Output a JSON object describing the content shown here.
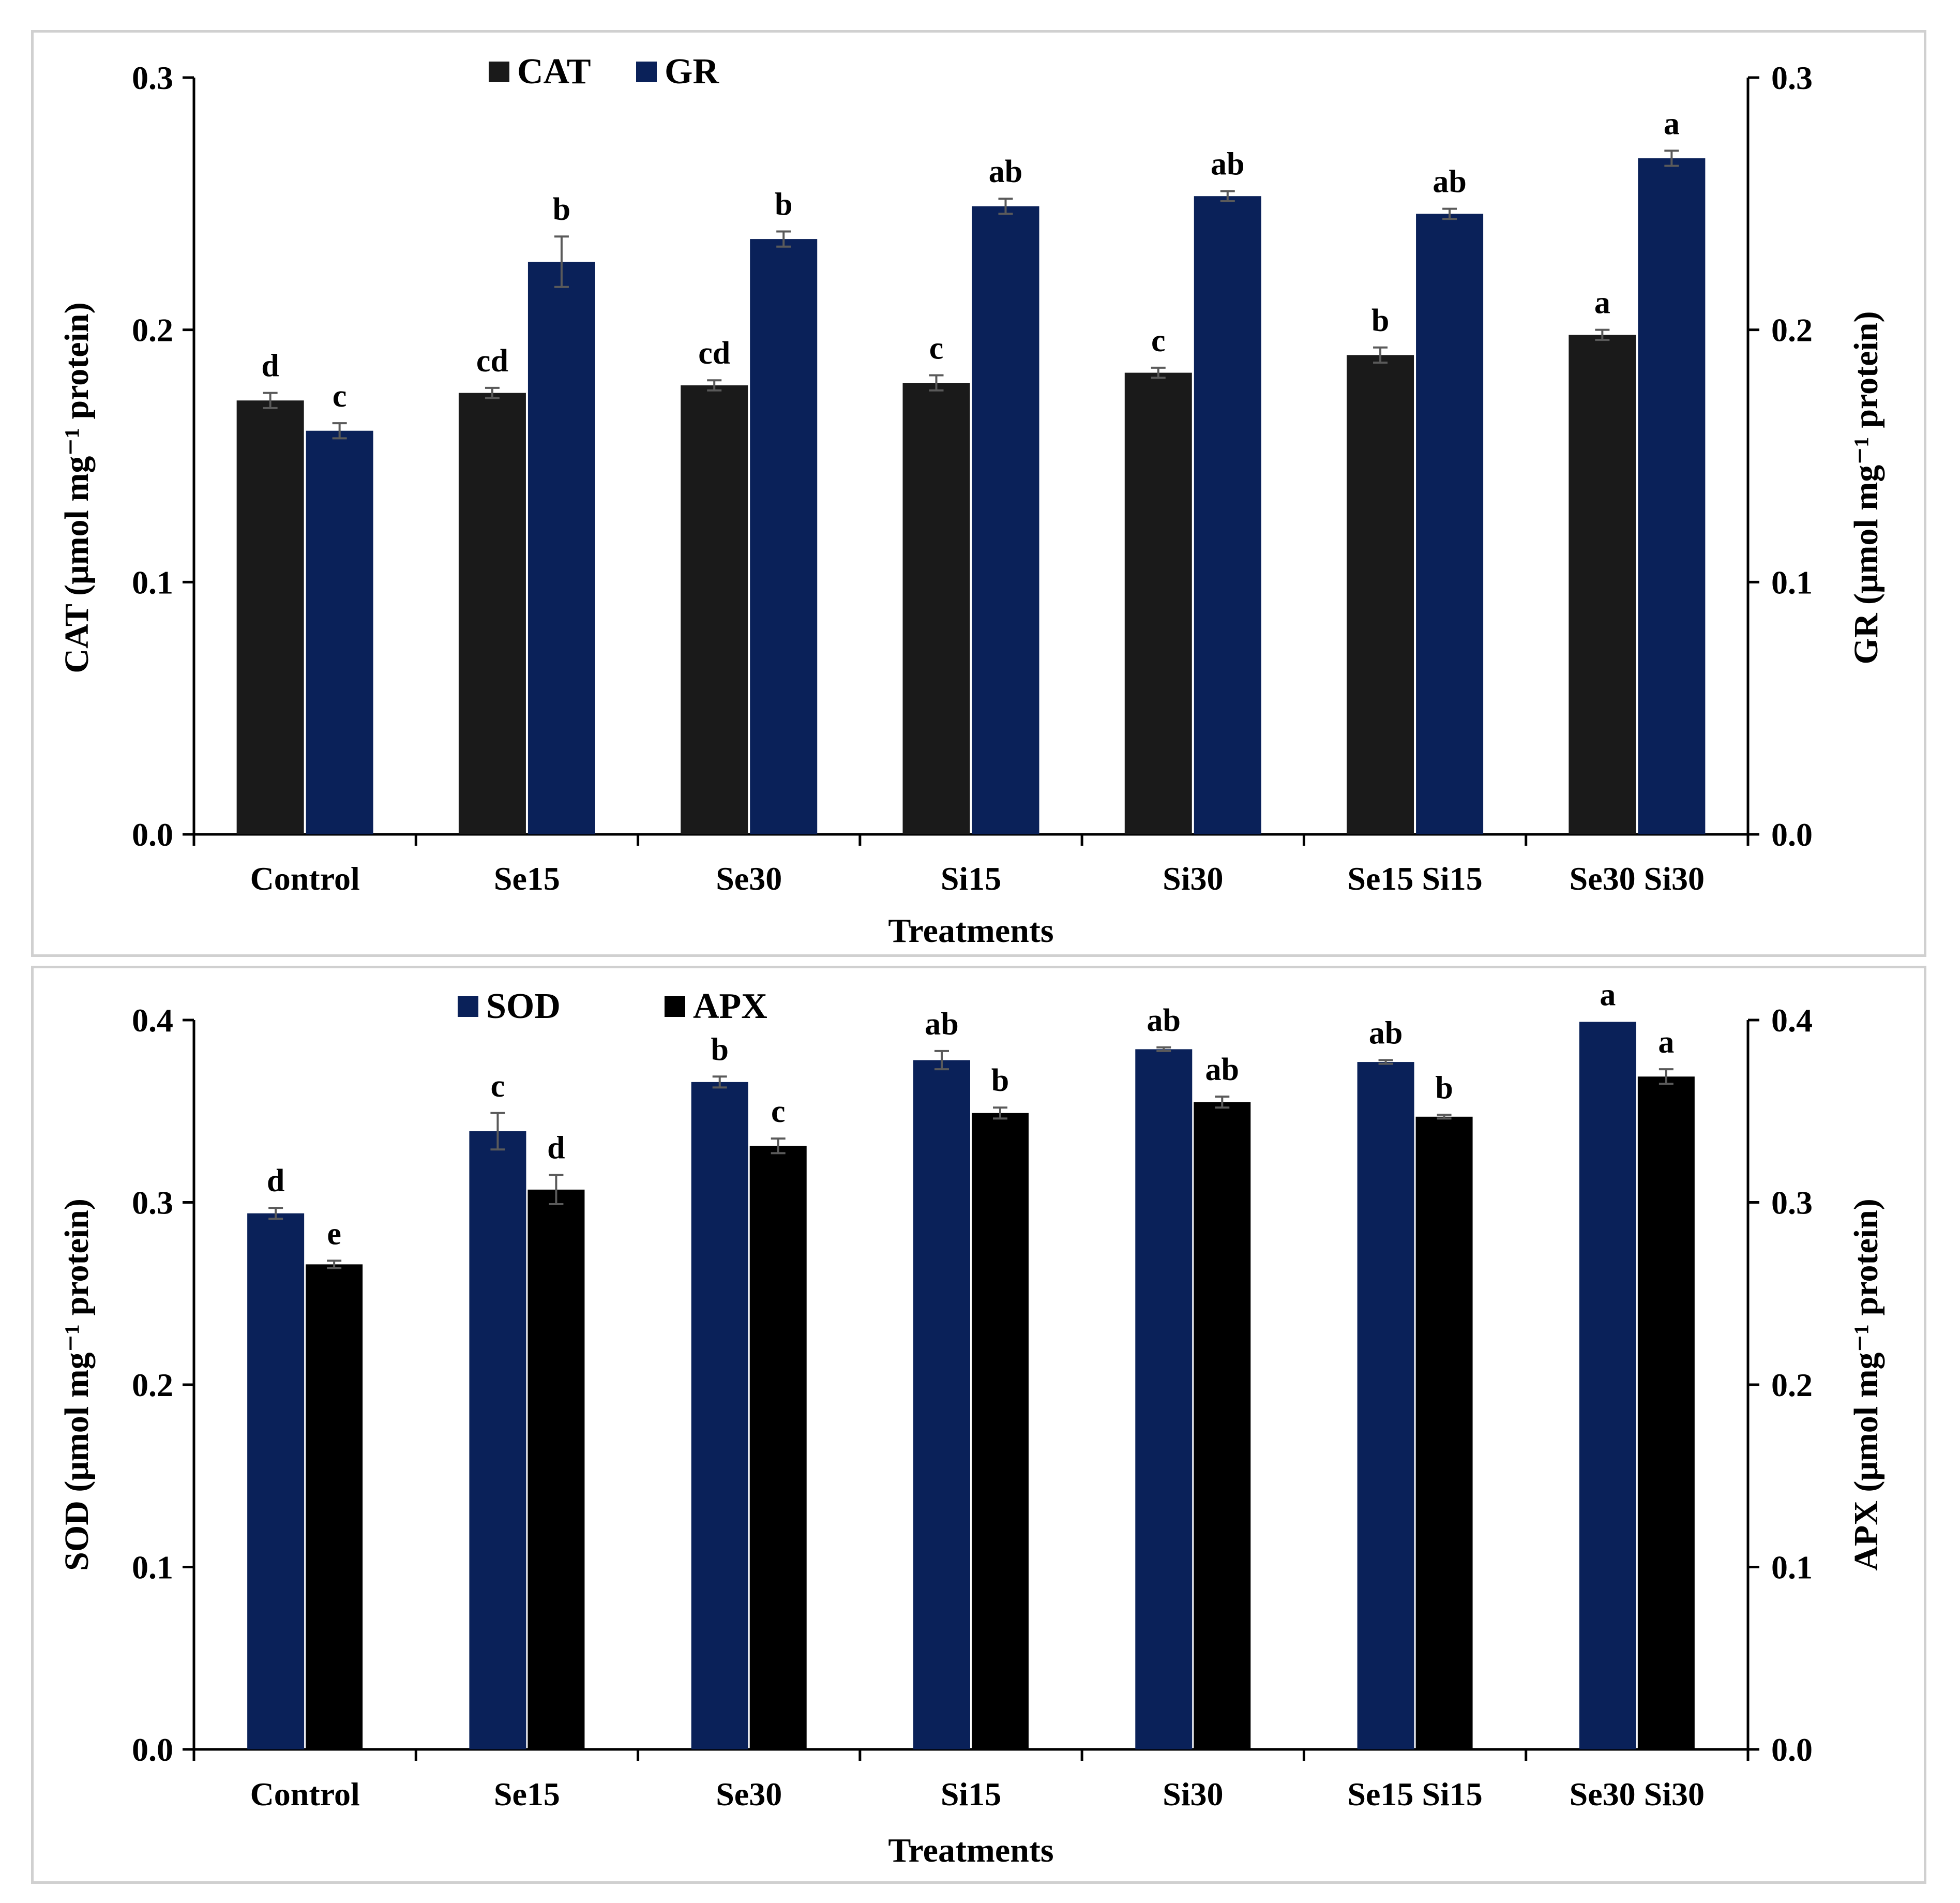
{
  "chart_data": [
    {
      "type": "bar",
      "categories": [
        "Control",
        "Se15",
        "Se30",
        "Si15",
        "Si30",
        "Se15 Si15",
        "Se30 Si30"
      ],
      "xlabel": "Treatments",
      "ylabel_left": "CAT (μmol mg⁻¹ protein)",
      "ylabel_right": "GR (μmol mg⁻¹ protein)",
      "ylim": [
        0,
        0.3
      ],
      "yticks": [
        "0.0",
        "0.1",
        "0.2",
        "0.3"
      ],
      "legend": [
        "CAT",
        "GR"
      ],
      "series": [
        {
          "name": "CAT",
          "color": "#1a1a1a",
          "values": [
            0.172,
            0.175,
            0.178,
            0.179,
            0.183,
            0.19,
            0.198
          ],
          "errors": [
            0.003,
            0.002,
            0.002,
            0.003,
            0.002,
            0.003,
            0.002
          ],
          "letters": [
            "d",
            "cd",
            "cd",
            "c",
            "c",
            "b",
            "a"
          ]
        },
        {
          "name": "GR",
          "color": "#0a2159",
          "values": [
            0.16,
            0.227,
            0.236,
            0.249,
            0.253,
            0.246,
            0.268
          ],
          "errors": [
            0.003,
            0.01,
            0.003,
            0.003,
            0.002,
            0.002,
            0.003
          ],
          "letters": [
            "c",
            "b",
            "b",
            "ab",
            "ab",
            "ab",
            "a"
          ]
        }
      ]
    },
    {
      "type": "bar",
      "categories": [
        "Control",
        "Se15",
        "Se30",
        "Si15",
        "Si30",
        "Se15 Si15",
        "Se30 Si30"
      ],
      "xlabel": "Treatments",
      "ylabel_left": "SOD (μmol mg⁻¹ protein)",
      "ylabel_right": "APX (μmol mg⁻¹ protein)",
      "ylim": [
        0,
        0.4
      ],
      "yticks": [
        "0.0",
        "0.1",
        "0.2",
        "0.3",
        "0.4"
      ],
      "legend": [
        "SOD",
        "APX"
      ],
      "series": [
        {
          "name": "SOD",
          "color": "#0a2159",
          "values": [
            0.294,
            0.339,
            0.366,
            0.378,
            0.384,
            0.377,
            0.399
          ],
          "errors": [
            0.003,
            0.01,
            0.003,
            0.005,
            0.001,
            0.001,
            0.0
          ],
          "letters": [
            "d",
            "c",
            "b",
            "ab",
            "ab",
            "ab",
            "a"
          ]
        },
        {
          "name": "APX",
          "color": "#000000",
          "values": [
            0.266,
            0.307,
            0.331,
            0.349,
            0.355,
            0.347,
            0.369
          ],
          "errors": [
            0.002,
            0.008,
            0.004,
            0.003,
            0.003,
            0.001,
            0.004
          ],
          "letters": [
            "e",
            "d",
            "c",
            "b",
            "ab",
            "b",
            "a"
          ]
        }
      ]
    }
  ]
}
